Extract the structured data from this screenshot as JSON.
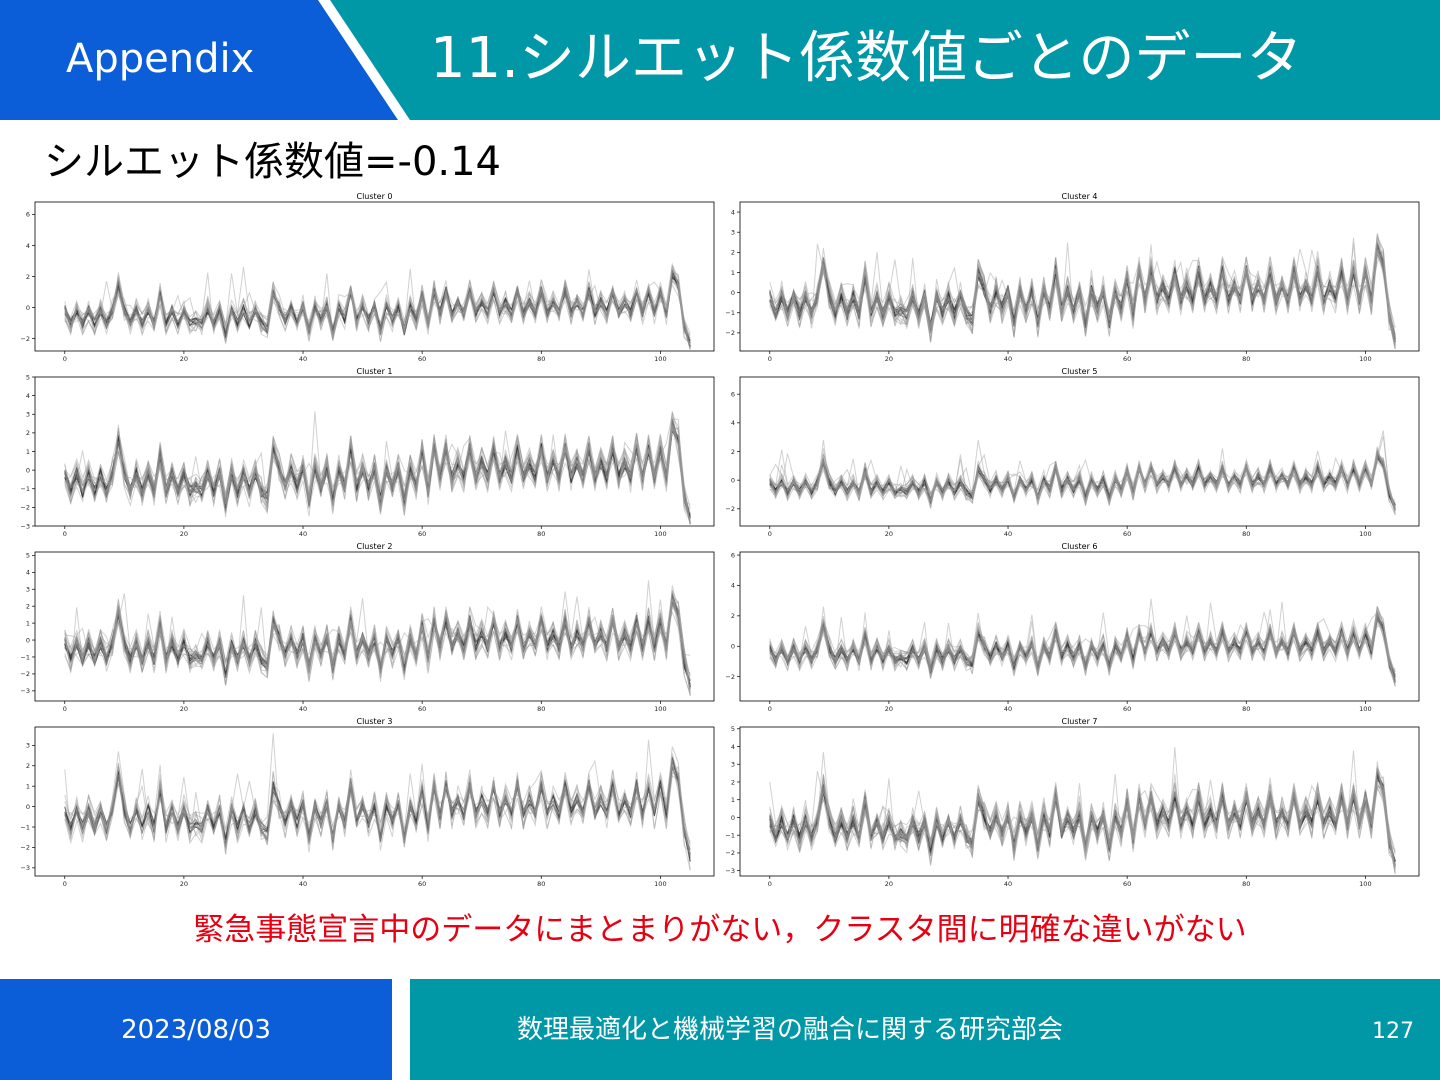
{
  "header": {
    "tag": "Appendix",
    "title": "11.シルエット係数値ごとのデータ",
    "colors": {
      "tag_bg": "#0b5ed7",
      "title_bg": "#0097a7"
    }
  },
  "subtitle": "シルエット係数値=-0.14",
  "note": "緊急事態宣言中のデータにまとまりがない，クラスタ間に明確な違いがない",
  "footer": {
    "date": "2023/08/03",
    "society": "数理最適化と機械学習の融合に関する研究部会",
    "page": "127"
  },
  "chart_data": [
    {
      "type": "line",
      "title": "Cluster 0",
      "xticks": [
        0,
        20,
        40,
        60,
        80,
        100
      ],
      "yticks": [
        -2,
        0,
        2,
        4,
        6
      ],
      "xlim": [
        -5,
        109
      ],
      "ylim": [
        -2.8,
        6.8
      ],
      "amp": 1.0,
      "n_series": 22
    },
    {
      "type": "line",
      "title": "Cluster 1",
      "xticks": [
        0,
        20,
        40,
        60,
        80,
        100
      ],
      "yticks": [
        -3,
        -2,
        -1,
        0,
        1,
        2,
        3,
        4,
        5
      ],
      "xlim": [
        -5,
        109
      ],
      "ylim": [
        -3,
        5
      ],
      "amp": 1.1,
      "n_series": 26
    },
    {
      "type": "line",
      "title": "Cluster 2",
      "xticks": [
        0,
        20,
        40,
        60,
        80,
        100
      ],
      "yticks": [
        -3,
        -2,
        -1,
        0,
        1,
        2,
        3,
        4,
        5
      ],
      "xlim": [
        -5,
        109
      ],
      "ylim": [
        -3.6,
        5.2
      ],
      "amp": 1.1,
      "n_series": 26
    },
    {
      "type": "line",
      "title": "Cluster 3",
      "xticks": [
        0,
        20,
        40,
        60,
        80,
        100
      ],
      "yticks": [
        -3,
        -2,
        -1,
        0,
        1,
        2,
        3
      ],
      "xlim": [
        -5,
        109
      ],
      "ylim": [
        -3.4,
        3.9
      ],
      "amp": 1.0,
      "n_series": 18
    },
    {
      "type": "line",
      "title": "Cluster 4",
      "xticks": [
        0,
        20,
        40,
        60,
        80,
        100
      ],
      "yticks": [
        -2,
        -1,
        0,
        1,
        2,
        3,
        4
      ],
      "xlim": [
        -5,
        109
      ],
      "ylim": [
        -2.9,
        4.5
      ],
      "amp": 1.0,
      "n_series": 26
    },
    {
      "type": "line",
      "title": "Cluster 5",
      "xticks": [
        0,
        20,
        40,
        60,
        80,
        100
      ],
      "yticks": [
        -2,
        0,
        2,
        4,
        6
      ],
      "xlim": [
        -5,
        109
      ],
      "ylim": [
        -3.2,
        7.2
      ],
      "amp": 0.8,
      "n_series": 26
    },
    {
      "type": "line",
      "title": "Cluster 6",
      "xticks": [
        0,
        20,
        40,
        60,
        80,
        100
      ],
      "yticks": [
        -2,
        0,
        2,
        4,
        6
      ],
      "xlim": [
        -5,
        109
      ],
      "ylim": [
        -3.6,
        6.2
      ],
      "amp": 0.9,
      "n_series": 26
    },
    {
      "type": "line",
      "title": "Cluster 7",
      "xticks": [
        0,
        20,
        40,
        60,
        80,
        100
      ],
      "yticks": [
        -3,
        -2,
        -1,
        0,
        1,
        2,
        3,
        4,
        5
      ],
      "xlim": [
        -5,
        109
      ],
      "ylim": [
        -3.3,
        5.1
      ],
      "amp": 1.1,
      "n_series": 28
    }
  ]
}
